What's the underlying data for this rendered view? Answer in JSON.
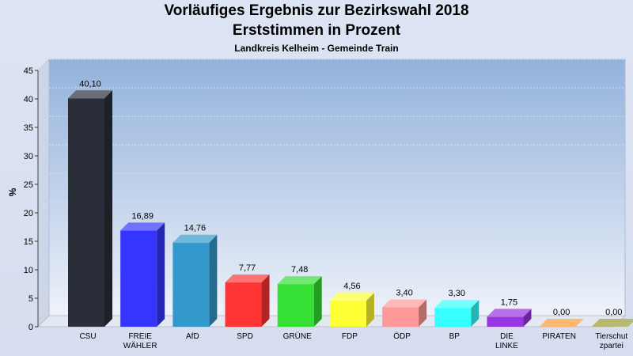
{
  "chart_data": {
    "type": "bar",
    "title": "Vorläufiges Ergebnis zur Bezirkswahl 2018",
    "subtitle": "Erststimmen in Prozent",
    "subsubtitle": "Landkreis Kelheim   - Gemeinde Train",
    "ylabel": "%",
    "xlabel": "",
    "ylim": [
      0,
      45
    ],
    "yticks": [
      0,
      5,
      10,
      15,
      20,
      25,
      30,
      35,
      40,
      45
    ],
    "categories": [
      "CSU",
      "FREIE WÄHLER",
      "AfD",
      "SPD",
      "GRÜNE",
      "FDP",
      "ÖDP",
      "BP",
      "DIE LINKE",
      "PIRATEN",
      "Tierschutzpartei"
    ],
    "category_lines": [
      [
        "CSU"
      ],
      [
        "FREIE",
        "WÄHLER"
      ],
      [
        "AfD"
      ],
      [
        "SPD"
      ],
      [
        "GRÜNE"
      ],
      [
        "FDP"
      ],
      [
        "ÖDP"
      ],
      [
        "BP"
      ],
      [
        "DIE",
        "LINKE"
      ],
      [
        "PIRATEN"
      ],
      [
        "Tierschut",
        "zpartei"
      ]
    ],
    "values": [
      40.1,
      16.89,
      14.76,
      7.77,
      7.48,
      4.56,
      3.4,
      3.3,
      1.75,
      0.0,
      0.0
    ],
    "value_labels": [
      "40,10",
      "16,89",
      "14,76",
      "7,77",
      "7,48",
      "4,56",
      "3,40",
      "3,30",
      "1,75",
      "0,00",
      "0,00"
    ],
    "colors": [
      "#2a2e38",
      "#3535ff",
      "#3399cc",
      "#ff3535",
      "#35e035",
      "#ffff35",
      "#ff9999",
      "#35ffff",
      "#9935e0",
      "#ff9935",
      "#999933"
    ],
    "grid": true,
    "legend": "none"
  }
}
